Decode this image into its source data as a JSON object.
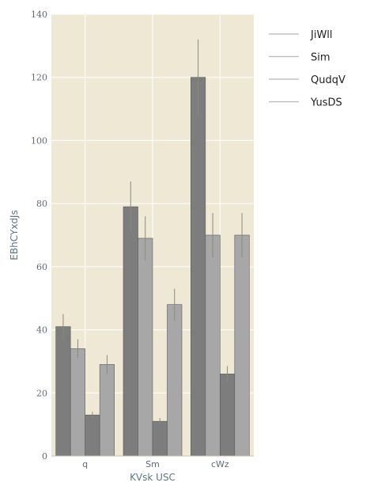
{
  "chart_data": {
    "type": "bar",
    "xlabel": "KVsk USC",
    "ylabel": "EBhCYxdJs",
    "ylim": [
      0,
      140
    ],
    "yticks": [
      0,
      20,
      40,
      60,
      80,
      100,
      120,
      140
    ],
    "categories": [
      "q",
      "Sm",
      "cWz"
    ],
    "grid": true,
    "legend_position": "right",
    "background_color": "#efe8d5",
    "series": [
      {
        "name": "JiWll",
        "values": [
          41,
          79,
          120
        ],
        "errors": [
          4,
          8,
          12
        ],
        "color": "#7d7d7d"
      },
      {
        "name": "Sim",
        "values": [
          34,
          69,
          70
        ],
        "errors": [
          3,
          7,
          7
        ],
        "color": "#a7a7a7"
      },
      {
        "name": "QudqV",
        "values": [
          13,
          11,
          26
        ],
        "errors": [
          1,
          1,
          2.5
        ],
        "color": "#7d7d7d"
      },
      {
        "name": "YusDS",
        "values": [
          29,
          48,
          70
        ],
        "errors": [
          3,
          5,
          7
        ],
        "color": "#a7a7a7"
      }
    ]
  }
}
